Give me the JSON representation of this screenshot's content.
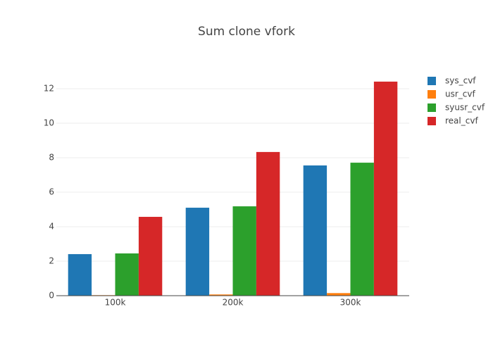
{
  "chart_data": {
    "type": "bar",
    "title": "Sum clone vfork",
    "categories": [
      "100k",
      "200k",
      "300k"
    ],
    "series": [
      {
        "name": "sys_cvf",
        "color": "#1f77b4",
        "values": [
          2.41,
          5.1,
          7.55
        ]
      },
      {
        "name": "usr_cvf",
        "color": "#ff7f0e",
        "values": [
          0.03,
          0.07,
          0.15
        ]
      },
      {
        "name": "syusr_cvf",
        "color": "#2ca02c",
        "values": [
          2.45,
          5.18,
          7.71
        ]
      },
      {
        "name": "real_cvf",
        "color": "#d62728",
        "values": [
          4.57,
          8.33,
          12.41
        ]
      }
    ],
    "ylim": [
      0,
      13.06
    ],
    "yticks": [
      0,
      2,
      4,
      6,
      8,
      10,
      12
    ],
    "grid": true
  }
}
